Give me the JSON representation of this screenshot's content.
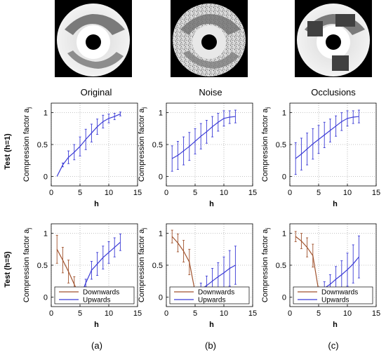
{
  "columns": [
    {
      "title": "Original",
      "caption": "(a)"
    },
    {
      "title": "Noise",
      "caption": "(b)"
    },
    {
      "title": "Occlusions",
      "caption": "(c)"
    }
  ],
  "rows": [
    {
      "label": "Test (h=1)"
    },
    {
      "label": "Test (h=5)"
    }
  ],
  "axes": {
    "xlabel": "h",
    "ylabel": "Compression factor a",
    "ylabel_subscript": "j",
    "xlim": [
      0,
      15
    ],
    "ylim": [
      -0.15,
      1.15
    ],
    "xticks": [
      "0",
      "5",
      "10",
      "15"
    ],
    "yticks": [
      "0",
      "0.5",
      "1"
    ],
    "grid": "dotted"
  },
  "legend": {
    "entries": [
      "Downwards",
      "Upwards"
    ],
    "placement": "bottom"
  },
  "colors": {
    "upwards": "#3a3ad6",
    "downwards": "#a0522d",
    "axis": "#000000",
    "grid": "#8a8a8a"
  },
  "chart_data": [
    {
      "type": "line",
      "row": 0,
      "col": 0,
      "series": [
        {
          "name": "",
          "color": "upwards",
          "x": [
            1,
            2,
            3,
            4,
            5,
            6,
            7,
            8,
            9,
            10,
            11,
            12
          ],
          "y": [
            0,
            0.18,
            0.3,
            0.38,
            0.47,
            0.58,
            0.68,
            0.78,
            0.86,
            0.91,
            0.94,
            0.98
          ],
          "err": [
            0,
            0.03,
            0.1,
            0.12,
            0.15,
            0.16,
            0.14,
            0.12,
            0.1,
            0.07,
            0.05,
            0.03
          ]
        }
      ]
    },
    {
      "type": "line",
      "row": 0,
      "col": 1,
      "series": [
        {
          "name": "",
          "color": "upwards",
          "x": [
            1,
            2,
            3,
            4,
            5,
            6,
            7,
            8,
            9,
            10,
            11,
            12
          ],
          "y": [
            0.28,
            0.33,
            0.4,
            0.47,
            0.55,
            0.63,
            0.7,
            0.78,
            0.85,
            0.91,
            0.93,
            0.94
          ],
          "err": [
            0.2,
            0.22,
            0.22,
            0.22,
            0.2,
            0.2,
            0.18,
            0.16,
            0.14,
            0.12,
            0.1,
            0.1
          ]
        }
      ]
    },
    {
      "type": "line",
      "row": 0,
      "col": 2,
      "series": [
        {
          "name": "",
          "color": "upwards",
          "x": [
            1,
            2,
            3,
            4,
            5,
            6,
            7,
            8,
            9,
            10,
            11,
            12
          ],
          "y": [
            0.28,
            0.35,
            0.43,
            0.51,
            0.58,
            0.65,
            0.72,
            0.79,
            0.86,
            0.91,
            0.93,
            0.94
          ],
          "err": [
            0.25,
            0.25,
            0.25,
            0.24,
            0.22,
            0.2,
            0.18,
            0.16,
            0.14,
            0.12,
            0.1,
            0.1
          ]
        }
      ]
    },
    {
      "type": "line",
      "row": 1,
      "col": 0,
      "series": [
        {
          "name": "Downwards",
          "color": "downwards",
          "x": [
            1,
            2,
            3,
            4,
            5
          ],
          "y": [
            0.75,
            0.58,
            0.4,
            0.2,
            0
          ],
          "err": [
            0.22,
            0.2,
            0.18,
            0.12,
            0
          ]
        },
        {
          "name": "Upwards",
          "color": "upwards",
          "x": [
            5,
            6,
            7,
            8,
            9,
            10,
            11,
            12
          ],
          "y": [
            0,
            0.22,
            0.42,
            0.52,
            0.62,
            0.7,
            0.78,
            0.86
          ],
          "err": [
            0,
            0.06,
            0.14,
            0.18,
            0.18,
            0.17,
            0.15,
            0.13
          ]
        }
      ]
    },
    {
      "type": "line",
      "row": 1,
      "col": 1,
      "series": [
        {
          "name": "Downwards",
          "color": "downwards",
          "x": [
            1,
            2,
            3,
            4,
            5
          ],
          "y": [
            0.95,
            0.85,
            0.72,
            0.55,
            0.08
          ],
          "err": [
            0.1,
            0.14,
            0.17,
            0.2,
            0.05
          ]
        },
        {
          "name": "Upwards",
          "color": "upwards",
          "x": [
            5,
            6,
            7,
            8,
            9,
            10,
            11,
            12
          ],
          "y": [
            0.05,
            0.12,
            0.18,
            0.25,
            0.32,
            0.38,
            0.45,
            0.5
          ],
          "err": [
            0.05,
            0.1,
            0.15,
            0.2,
            0.22,
            0.25,
            0.28,
            0.3
          ]
        }
      ]
    },
    {
      "type": "line",
      "row": 1,
      "col": 2,
      "series": [
        {
          "name": "Downwards",
          "color": "downwards",
          "x": [
            1,
            2,
            3,
            4,
            5
          ],
          "y": [
            0.95,
            0.88,
            0.78,
            0.65,
            0.1
          ],
          "err": [
            0.08,
            0.12,
            0.15,
            0.18,
            0.06
          ]
        },
        {
          "name": "Upwards",
          "color": "upwards",
          "x": [
            5,
            6,
            7,
            8,
            9,
            10,
            11,
            12
          ],
          "y": [
            0.08,
            0.14,
            0.2,
            0.28,
            0.35,
            0.43,
            0.52,
            0.63
          ],
          "err": [
            0.05,
            0.1,
            0.15,
            0.2,
            0.22,
            0.26,
            0.3,
            0.33
          ]
        }
      ]
    }
  ]
}
